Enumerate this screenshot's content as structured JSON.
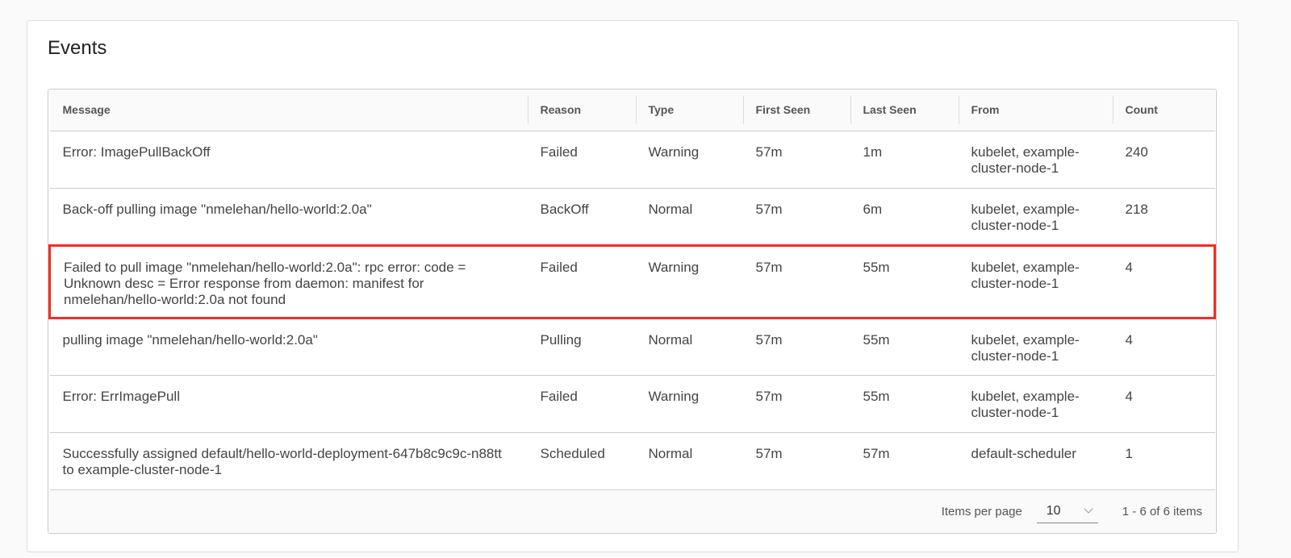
{
  "title": "Events",
  "columns": [
    "Message",
    "Reason",
    "Type",
    "First Seen",
    "Last Seen",
    "From",
    "Count"
  ],
  "rows": [
    [
      "Error: ImagePullBackOff",
      "Failed",
      "Warning",
      "57m",
      "1m",
      "kubelet, example-cluster-node-1",
      "240"
    ],
    [
      "Back-off pulling image \"nmelehan/hello-world:2.0a\"",
      "BackOff",
      "Normal",
      "57m",
      "6m",
      "kubelet, example-cluster-node-1",
      "218"
    ],
    [
      "Failed to pull image \"nmelehan/hello-world:2.0a\": rpc error: code = Unknown desc = Error response from daemon: manifest for nmelehan/hello-world:2.0a not found",
      "Failed",
      "Warning",
      "57m",
      "55m",
      "kubelet, example-cluster-node-1",
      "4"
    ],
    [
      "pulling image \"nmelehan/hello-world:2.0a\"",
      "Pulling",
      "Normal",
      "57m",
      "55m",
      "kubelet, example-cluster-node-1",
      "4"
    ],
    [
      "Error: ErrImagePull",
      "Failed",
      "Warning",
      "57m",
      "55m",
      "kubelet, example-cluster-node-1",
      "4"
    ],
    [
      "Successfully assigned default/hello-world-deployment-647b8c9c9c-n88tt to example-cluster-node-1",
      "Scheduled",
      "Normal",
      "57m",
      "57m",
      "default-scheduler",
      "1"
    ]
  ],
  "highlighted_row": 2,
  "highlight_color": "#f0301f",
  "footer": {
    "items_per_page_label": "Items per page",
    "items_per_page": "10",
    "range": "1 - 6 of 6 items"
  }
}
